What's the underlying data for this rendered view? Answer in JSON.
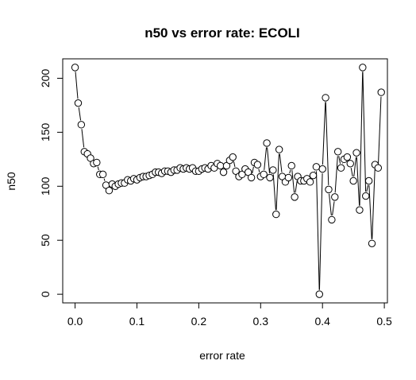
{
  "chart_data": {
    "type": "scatter",
    "mode": "points-and-lines",
    "title": "n50 vs error rate: ECOLI",
    "xlabel": "error rate",
    "ylabel": "n50",
    "xlim": [
      -0.02,
      0.505
    ],
    "ylim": [
      -8,
      218
    ],
    "xticks": [
      0.0,
      0.1,
      0.2,
      0.3,
      0.4,
      0.5
    ],
    "xtick_labels": [
      "0.0",
      "0.1",
      "0.2",
      "0.3",
      "0.4",
      "0.5"
    ],
    "yticks": [
      0,
      50,
      100,
      150,
      200
    ],
    "ytick_labels": [
      "0",
      "50",
      "100",
      "150",
      "200"
    ],
    "grid": false,
    "legend": "none",
    "series": [
      {
        "x": [
          0.0,
          0.005,
          0.01,
          0.015,
          0.02,
          0.025,
          0.03,
          0.035,
          0.04,
          0.045,
          0.05,
          0.055,
          0.06,
          0.065,
          0.07,
          0.075,
          0.08,
          0.085,
          0.09,
          0.095,
          0.1,
          0.105,
          0.11,
          0.115,
          0.12,
          0.125,
          0.13,
          0.135,
          0.14,
          0.145,
          0.15,
          0.155,
          0.16,
          0.165,
          0.17,
          0.175,
          0.18,
          0.185,
          0.19,
          0.195,
          0.2,
          0.205,
          0.21,
          0.215,
          0.22,
          0.225,
          0.23,
          0.235,
          0.24,
          0.245,
          0.25,
          0.255,
          0.26,
          0.265,
          0.27,
          0.275,
          0.28,
          0.285,
          0.29,
          0.295,
          0.3,
          0.305,
          0.31,
          0.315,
          0.32,
          0.325,
          0.33,
          0.335,
          0.34,
          0.345,
          0.35,
          0.355,
          0.36,
          0.365,
          0.37,
          0.375,
          0.38,
          0.385,
          0.39,
          0.395,
          0.4,
          0.405,
          0.41,
          0.415,
          0.42,
          0.425,
          0.43,
          0.435,
          0.44,
          0.445,
          0.45,
          0.455,
          0.46,
          0.465,
          0.47,
          0.475,
          0.48,
          0.485,
          0.49,
          0.495
        ],
        "y": [
          210,
          177,
          157,
          132,
          130,
          126,
          121,
          122,
          111,
          111,
          101,
          96,
          102,
          100,
          102,
          103,
          103,
          106,
          105,
          107,
          106,
          108,
          109,
          109,
          110,
          111,
          113,
          113,
          112,
          114,
          114,
          113,
          115,
          115,
          117,
          116,
          117,
          116,
          117,
          114,
          114,
          116,
          117,
          116,
          119,
          117,
          121,
          119,
          113,
          119,
          124,
          127,
          114,
          109,
          111,
          116,
          113,
          108,
          122,
          120,
          109,
          111,
          140,
          108,
          115,
          74,
          134,
          109,
          104,
          108,
          119,
          90,
          109,
          105,
          105,
          107,
          104,
          110,
          118,
          0,
          116,
          182,
          97,
          69,
          90,
          132,
          117,
          125,
          127,
          121,
          105,
          131,
          78,
          210,
          91,
          105,
          47,
          120,
          117,
          187
        ]
      }
    ]
  }
}
